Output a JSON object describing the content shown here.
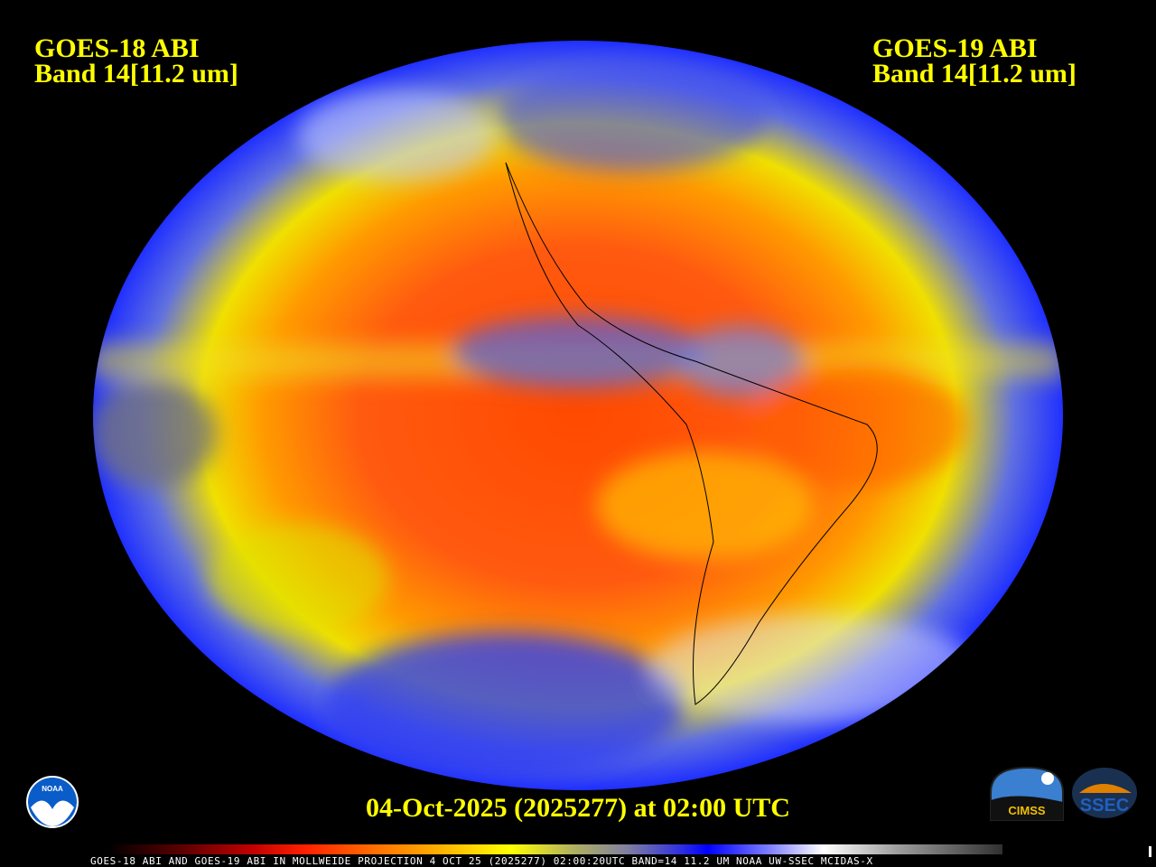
{
  "header": {
    "left_title": [
      "GOES-18 ABI",
      "Band 14[11.2 um]"
    ],
    "right_title": [
      "GOES-19 ABI",
      "Band 14[11.2 um]"
    ]
  },
  "timestamp": "04-Oct-2025 (2025277) at 02:00 UTC",
  "footer_caption": "GOES-18 ABI AND GOES-19 ABI IN MOLLWEIDE PROJECTION 4 OCT 25 (2025277) 02:00:20UTC BAND=14 11.2 UM NOAA UW-SSEC MCIDAS-X",
  "projection": "Mollweide",
  "colorbar": [
    "#000000",
    "#c00000",
    "#ff2000",
    "#ff7000",
    "#ffff00",
    "#8080a0",
    "#0000ff",
    "#ffffff",
    "#303030"
  ],
  "logos": {
    "noaa": "NOAA",
    "cimss": "CIMSS",
    "ssec": "SSEC"
  }
}
